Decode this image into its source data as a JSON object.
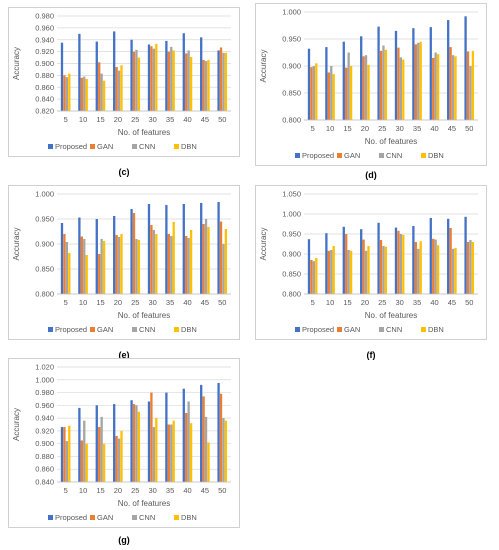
{
  "captions": {
    "c": "(c)",
    "d": "(d)",
    "e": "(e)",
    "f": "(f)",
    "g": "(g)"
  },
  "colors": {
    "Proposed": "#4472c4",
    "GAN": "#ed7d31",
    "CNN": "#a5a5a5",
    "DBN": "#ffc000",
    "grid": "#d9d9d9",
    "text": "#595959"
  },
  "chart_data": [
    {
      "panel": "c",
      "type": "bar",
      "xlabel": "No. of features",
      "ylabel": "Accuracy",
      "categories": [
        "5",
        "10",
        "15",
        "20",
        "25",
        "30",
        "35",
        "40",
        "45",
        "50"
      ],
      "yticks": [
        "0.820",
        "0.840",
        "0.860",
        "0.880",
        "0.900",
        "0.920",
        "0.940",
        "0.960",
        "0.980"
      ],
      "ylim": [
        0.82,
        0.98
      ],
      "grid": true,
      "legend": "bottom",
      "series": [
        {
          "name": "Proposed",
          "values": [
            0.935,
            0.95,
            0.937,
            0.954,
            0.94,
            0.932,
            0.938,
            0.951,
            0.944,
            0.922
          ]
        },
        {
          "name": "GAN",
          "values": [
            0.88,
            0.876,
            0.902,
            0.894,
            0.92,
            0.929,
            0.92,
            0.917,
            0.906,
            0.927
          ]
        },
        {
          "name": "CNN",
          "values": [
            0.877,
            0.878,
            0.883,
            0.888,
            0.923,
            0.925,
            0.928,
            0.922,
            0.904,
            0.918
          ]
        },
        {
          "name": "DBN",
          "values": [
            0.883,
            0.874,
            0.871,
            0.897,
            0.91,
            0.933,
            0.922,
            0.911,
            0.906,
            0.918
          ]
        }
      ]
    },
    {
      "panel": "d",
      "type": "bar",
      "xlabel": "No. of features",
      "ylabel": "Accuracy",
      "categories": [
        "5",
        "10",
        "15",
        "20",
        "25",
        "30",
        "35",
        "40",
        "45",
        "50"
      ],
      "yticks": [
        "0.800",
        "0.850",
        "0.900",
        "0.950",
        "1.000"
      ],
      "ylim": [
        0.8,
        1.0
      ],
      "grid": true,
      "legend": "bottom",
      "series": [
        {
          "name": "Proposed",
          "values": [
            0.932,
            0.935,
            0.945,
            0.955,
            0.973,
            0.965,
            0.97,
            0.972,
            0.985,
            0.992
          ]
        },
        {
          "name": "GAN",
          "values": [
            0.898,
            0.888,
            0.897,
            0.918,
            0.928,
            0.934,
            0.94,
            0.915,
            0.935,
            0.927
          ]
        },
        {
          "name": "CNN",
          "values": [
            0.9,
            0.9,
            0.925,
            0.92,
            0.938,
            0.916,
            0.943,
            0.925,
            0.92,
            0.9
          ]
        },
        {
          "name": "DBN",
          "values": [
            0.905,
            0.885,
            0.9,
            0.902,
            0.93,
            0.912,
            0.945,
            0.922,
            0.918,
            0.928
          ]
        }
      ]
    },
    {
      "panel": "e",
      "type": "bar",
      "xlabel": "No. of features",
      "ylabel": "Accuracy",
      "categories": [
        "5",
        "10",
        "15",
        "20",
        "25",
        "30",
        "35",
        "40",
        "45",
        "50"
      ],
      "yticks": [
        "0.800",
        "0.850",
        "0.900",
        "0.950",
        "1.000"
      ],
      "ylim": [
        0.8,
        1.0
      ],
      "grid": true,
      "legend": "bottom",
      "series": [
        {
          "name": "Proposed",
          "values": [
            0.942,
            0.953,
            0.95,
            0.956,
            0.97,
            0.98,
            0.978,
            0.98,
            0.982,
            0.984
          ]
        },
        {
          "name": "GAN",
          "values": [
            0.92,
            0.915,
            0.88,
            0.918,
            0.962,
            0.938,
            0.92,
            0.916,
            0.94,
            0.945
          ]
        },
        {
          "name": "CNN",
          "values": [
            0.904,
            0.91,
            0.91,
            0.914,
            0.91,
            0.928,
            0.916,
            0.912,
            0.95,
            0.9
          ]
        },
        {
          "name": "DBN",
          "values": [
            0.882,
            0.878,
            0.906,
            0.92,
            0.908,
            0.92,
            0.944,
            0.928,
            0.934,
            0.93
          ]
        }
      ]
    },
    {
      "panel": "f",
      "type": "bar",
      "xlabel": "No. of features",
      "ylabel": "Accuracy",
      "categories": [
        "5",
        "10",
        "15",
        "20",
        "25",
        "30",
        "35",
        "40",
        "45",
        "50"
      ],
      "yticks": [
        "0.800",
        "0.850",
        "0.900",
        "0.950",
        "1.000",
        "1.050"
      ],
      "ylim": [
        0.8,
        1.05
      ],
      "grid": true,
      "legend": "bottom",
      "series": [
        {
          "name": "Proposed",
          "values": [
            0.937,
            0.952,
            0.968,
            0.962,
            0.978,
            0.966,
            0.97,
            0.99,
            0.988,
            0.993
          ]
        },
        {
          "name": "GAN",
          "values": [
            0.885,
            0.908,
            0.95,
            0.936,
            0.935,
            0.958,
            0.93,
            0.938,
            0.965,
            0.93
          ]
        },
        {
          "name": "CNN",
          "values": [
            0.882,
            0.91,
            0.91,
            0.908,
            0.92,
            0.95,
            0.913,
            0.936,
            0.913,
            0.935
          ]
        },
        {
          "name": "DBN",
          "values": [
            0.89,
            0.92,
            0.908,
            0.92,
            0.918,
            0.948,
            0.932,
            0.922,
            0.915,
            0.93
          ]
        }
      ]
    },
    {
      "panel": "g",
      "type": "bar",
      "xlabel": "No. of features",
      "ylabel": "Accuracy",
      "categories": [
        "5",
        "10",
        "15",
        "20",
        "25",
        "30",
        "35",
        "40",
        "45",
        "50"
      ],
      "yticks": [
        "0.840",
        "0.860",
        "0.880",
        "0.900",
        "0.920",
        "0.940",
        "0.960",
        "0.980",
        "1.000",
        "1.020"
      ],
      "ylim": [
        0.84,
        1.02
      ],
      "grid": true,
      "legend": "bottom",
      "series": [
        {
          "name": "Proposed",
          "values": [
            0.926,
            0.956,
            0.96,
            0.962,
            0.968,
            0.966,
            0.98,
            0.986,
            0.992,
            0.995
          ]
        },
        {
          "name": "GAN",
          "values": [
            0.926,
            0.905,
            0.926,
            0.912,
            0.962,
            0.98,
            0.93,
            0.948,
            0.974,
            0.978
          ]
        },
        {
          "name": "CNN",
          "values": [
            0.904,
            0.936,
            0.942,
            0.908,
            0.96,
            0.926,
            0.93,
            0.966,
            0.942,
            0.94
          ]
        },
        {
          "name": "DBN",
          "values": [
            0.928,
            0.9,
            0.9,
            0.92,
            0.95,
            0.94,
            0.936,
            0.932,
            0.902,
            0.936
          ]
        }
      ]
    }
  ]
}
